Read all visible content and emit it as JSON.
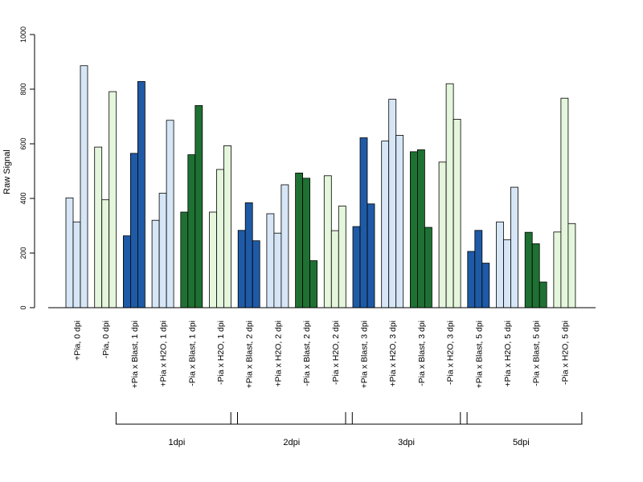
{
  "chart_data": {
    "type": "bar",
    "ylabel": "Raw Signal",
    "ylim": [
      0,
      1000
    ],
    "yticks": [
      0,
      200,
      400,
      600,
      800,
      1000
    ],
    "grid": false,
    "colors": {
      "dark_blue": "#1f5aa6",
      "light_blue": "#d6e6f6",
      "dark_green": "#1f7133",
      "light_green": "#e4f6dc"
    },
    "categories": [
      {
        "label": "+Pia, 0 dpi",
        "color": "light_blue",
        "values": [
          402,
          314,
          886
        ]
      },
      {
        "label": "-Pia, 0 dpi",
        "color": "light_green",
        "values": [
          588,
          395,
          791
        ]
      },
      {
        "label": "+Pia x Blast, 1 dpi",
        "color": "dark_blue",
        "values": [
          263,
          565,
          828
        ]
      },
      {
        "label": "+Pia x H2O, 1 dpi",
        "color": "light_blue",
        "values": [
          320,
          419,
          686
        ]
      },
      {
        "label": "-Pia x Blast, 1 dpi",
        "color": "dark_green",
        "values": [
          350,
          560,
          740
        ]
      },
      {
        "label": "-Pia x H2O, 1 dpi",
        "color": "light_green",
        "values": [
          350,
          506,
          593
        ]
      },
      {
        "label": "+Pia x Blast, 2 dpi",
        "color": "dark_blue",
        "values": [
          283,
          384,
          245
        ]
      },
      {
        "label": "+Pia x H2O, 2 dpi",
        "color": "light_blue",
        "values": [
          344,
          273,
          450
        ]
      },
      {
        "label": "-Pia x Blast, 2 dpi",
        "color": "dark_green",
        "values": [
          493,
          474,
          172
        ]
      },
      {
        "label": "-Pia x H2O, 2 dpi",
        "color": "light_green",
        "values": [
          483,
          282,
          372
        ]
      },
      {
        "label": "+Pia x Blast, 3 dpi",
        "color": "dark_blue",
        "values": [
          297,
          622,
          380
        ]
      },
      {
        "label": "+Pia x H2O, 3 dpi",
        "color": "light_blue",
        "values": [
          610,
          763,
          631
        ]
      },
      {
        "label": "-Pia x Blast, 3 dpi",
        "color": "dark_green",
        "values": [
          571,
          578,
          294
        ]
      },
      {
        "label": "-Pia x H2O, 3 dpi",
        "color": "light_green",
        "values": [
          533,
          820,
          690
        ]
      },
      {
        "label": "+Pia x Blast, 5 dpi",
        "color": "dark_blue",
        "values": [
          206,
          283,
          163
        ]
      },
      {
        "label": "+Pia x H2O, 5 dpi",
        "color": "light_blue",
        "values": [
          314,
          249,
          441
        ]
      },
      {
        "label": "-Pia x Blast, 5 dpi",
        "color": "dark_green",
        "values": [
          276,
          234,
          94
        ]
      },
      {
        "label": "-Pia x H2O, 5 dpi",
        "color": "light_green",
        "values": [
          277,
          767,
          308
        ]
      }
    ],
    "groups": [
      {
        "label": "1dpi",
        "from": 2,
        "to": 5
      },
      {
        "label": "2dpi",
        "from": 6,
        "to": 9
      },
      {
        "label": "3dpi",
        "from": 10,
        "to": 13
      },
      {
        "label": "5dpi",
        "from": 14,
        "to": 17
      }
    ]
  }
}
